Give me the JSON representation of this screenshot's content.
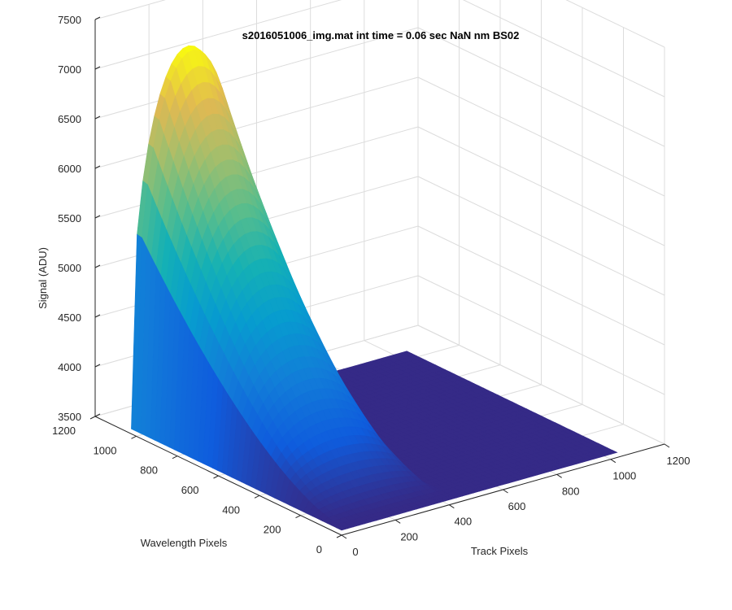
{
  "chart_data": {
    "type": "surface",
    "title": "s2016051006_img.mat int time = 0.06 sec  NaN nm BS02",
    "xlabel": "Track Pixels",
    "ylabel": "Wavelength Pixels",
    "zlabel": "Signal (ADU)",
    "xlim": [
      0,
      1200
    ],
    "ylim": [
      0,
      1200
    ],
    "zlim": [
      3500,
      7500
    ],
    "x_ticks": [
      "0",
      "200",
      "400",
      "600",
      "800",
      "1000",
      "1200"
    ],
    "y_ticks": [
      "0",
      "200",
      "400",
      "600",
      "800",
      "1000",
      "1200"
    ],
    "z_ticks": [
      "3500",
      "4000",
      "4500",
      "5000",
      "5500",
      "6000",
      "6500",
      "7000",
      "7500"
    ],
    "grid": true,
    "colormap": "parula",
    "baseline_signal": 3550,
    "peak_signal": 7250,
    "illuminated_track_range": [
      0,
      420
    ],
    "data_extent": {
      "x": [
        0,
        1024
      ],
      "y": [
        0,
        1024
      ]
    },
    "colors": {
      "low": "#352a87",
      "mid_blue": "#0f5cdd",
      "cyan": "#14b2c0",
      "green": "#7fbf7a",
      "yellow": "#fbd030"
    }
  }
}
